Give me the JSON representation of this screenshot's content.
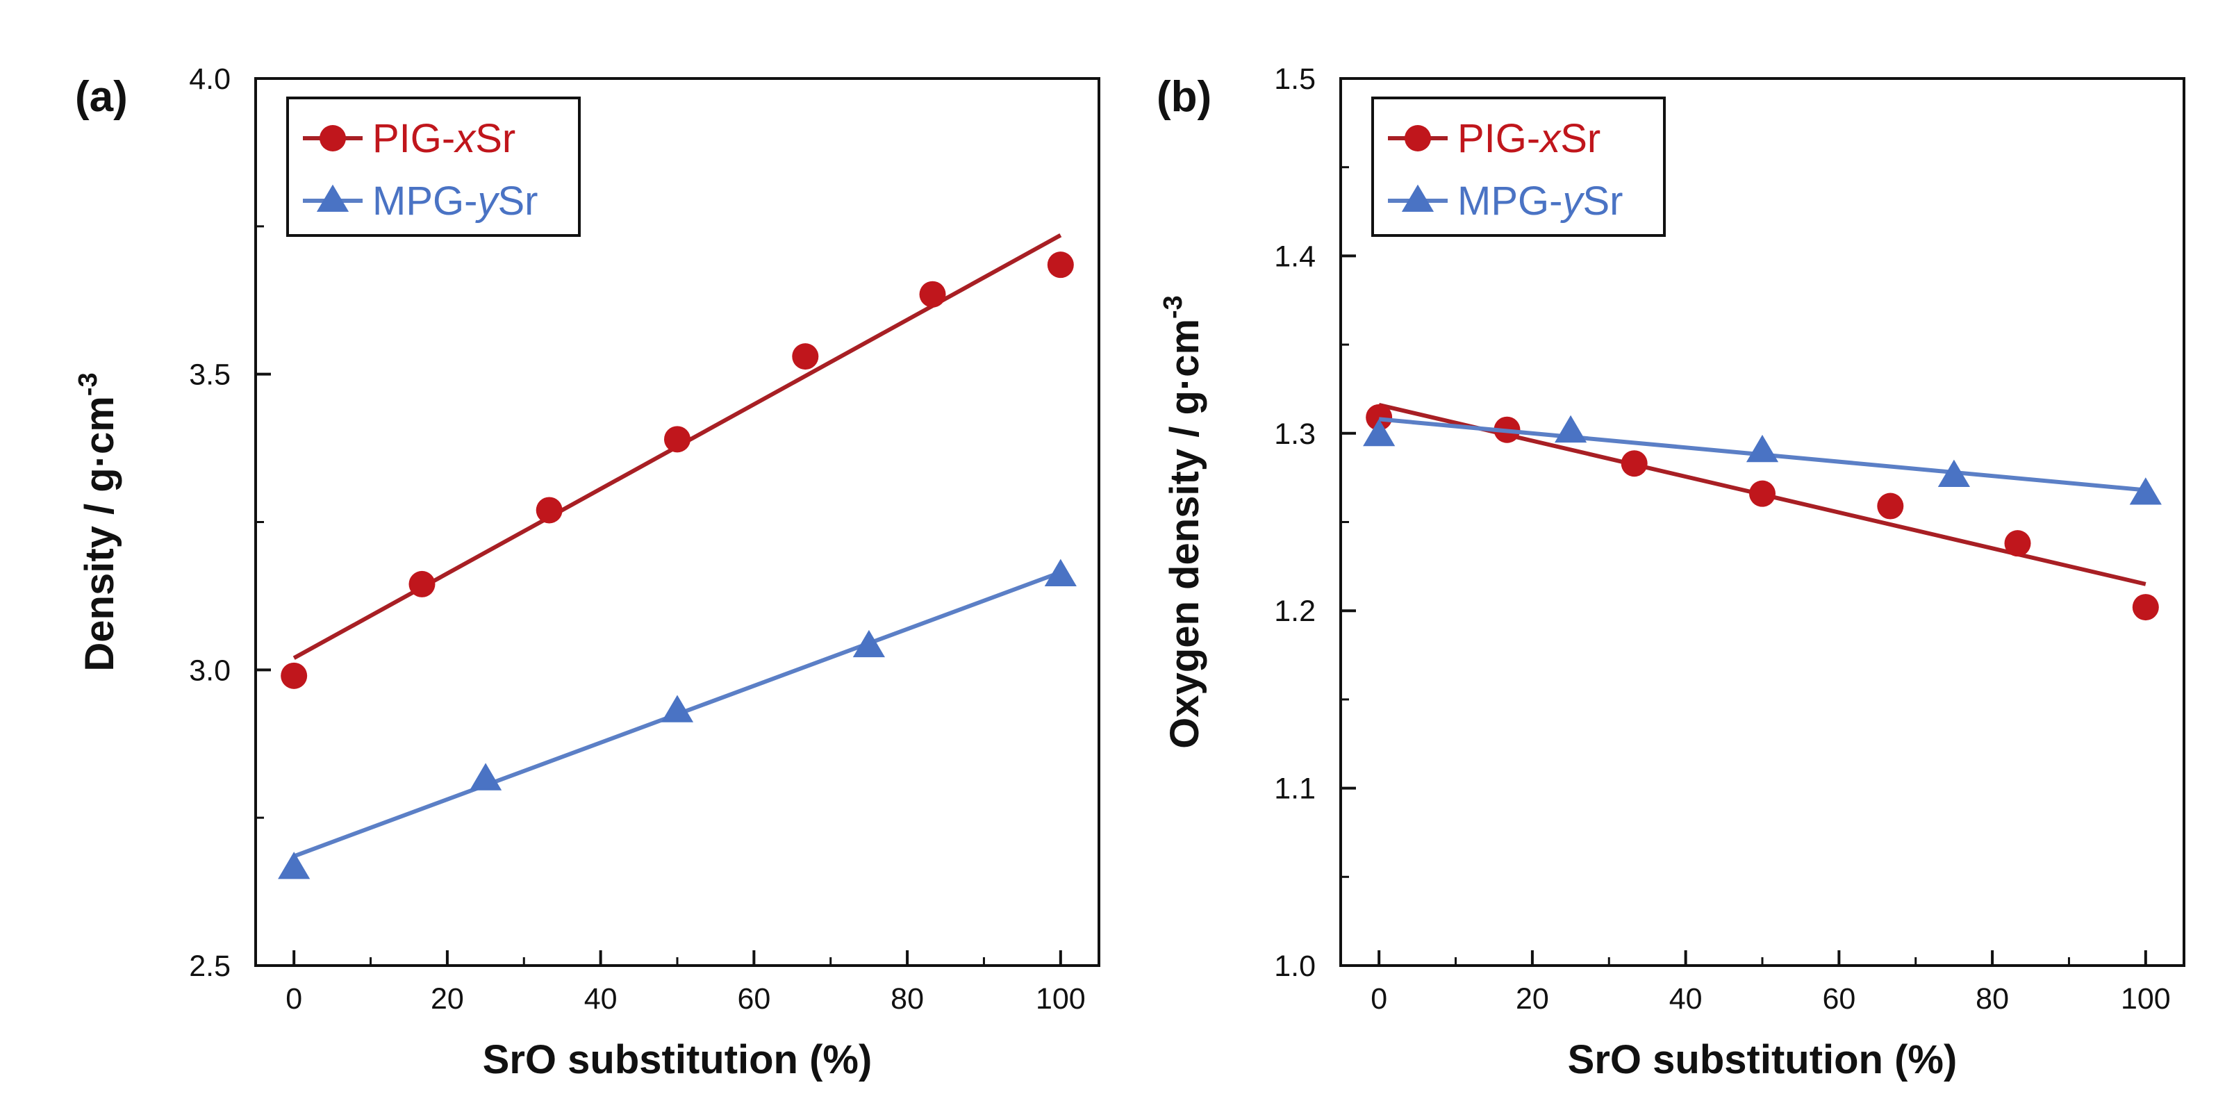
{
  "colors": {
    "pig": "#c0161c",
    "pig_line": "#a81f24",
    "mpg": "#4a73c4",
    "mpg_line": "#5b7fc6",
    "axis": "#111111"
  },
  "chart_data": [
    {
      "type": "scatter",
      "panel_label": "(a)",
      "xlabel": "SrO substitution (%)",
      "ylabel": "Density / g·cm",
      "ylabel_sup": "-3",
      "xlim": [
        -5,
        105
      ],
      "ylim": [
        2.5,
        4.0
      ],
      "x_ticks": [
        0,
        20,
        40,
        60,
        80,
        100
      ],
      "x_tick_labels": [
        "0",
        "20",
        "40",
        "60",
        "80",
        "100"
      ],
      "y_ticks": [
        2.5,
        3.0,
        3.5,
        4.0
      ],
      "y_tick_labels": [
        "2.5",
        "3.0",
        "3.5",
        "4.0"
      ],
      "legend_position": "top-left",
      "series": [
        {
          "name": "PIG-xSr",
          "legend_prefix": "PIG-",
          "legend_italic": "x",
          "legend_suffix": "Sr",
          "marker": "circle",
          "color_key": "pig",
          "x": [
            0,
            16.7,
            33.3,
            50,
            66.7,
            83.3,
            100
          ],
          "y": [
            2.99,
            3.145,
            3.27,
            3.39,
            3.53,
            3.635,
            3.685
          ],
          "fit": [
            [
              0,
              3.02
            ],
            [
              100,
              3.735
            ]
          ]
        },
        {
          "name": "MPG-ySr",
          "legend_prefix": "MPG-",
          "legend_italic": "y",
          "legend_suffix": "Sr",
          "marker": "triangle",
          "color_key": "mpg",
          "x": [
            0,
            25,
            50,
            75,
            100
          ],
          "y": [
            2.665,
            2.815,
            2.93,
            3.04,
            3.16
          ],
          "fit": [
            [
              0,
              2.685
            ],
            [
              100,
              3.165
            ]
          ]
        }
      ]
    },
    {
      "type": "scatter",
      "panel_label": "(b)",
      "xlabel": "SrO substitution (%)",
      "ylabel": "Oxygen density / g·cm",
      "ylabel_sup": "-3",
      "xlim": [
        -5,
        105
      ],
      "ylim": [
        1.0,
        1.5
      ],
      "x_ticks": [
        0,
        20,
        40,
        60,
        80,
        100
      ],
      "x_tick_labels": [
        "0",
        "20",
        "40",
        "60",
        "80",
        "100"
      ],
      "y_ticks": [
        1.0,
        1.1,
        1.2,
        1.3,
        1.4,
        1.5
      ],
      "y_tick_labels": [
        "1.0",
        "1.1",
        "1.2",
        "1.3",
        "1.4",
        "1.5"
      ],
      "legend_position": "top-left",
      "series": [
        {
          "name": "PIG-xSr",
          "legend_prefix": "PIG-",
          "legend_italic": "x",
          "legend_suffix": "Sr",
          "marker": "circle",
          "color_key": "pig",
          "x": [
            0,
            16.7,
            33.3,
            50,
            66.7,
            83.3,
            100
          ],
          "y": [
            1.309,
            1.302,
            1.283,
            1.266,
            1.259,
            1.238,
            1.202
          ],
          "fit": [
            [
              0,
              1.316
            ],
            [
              100,
              1.215
            ]
          ]
        },
        {
          "name": "MPG-ySr",
          "legend_prefix": "MPG-",
          "legend_italic": "y",
          "legend_suffix": "Sr",
          "marker": "triangle",
          "color_key": "mpg",
          "x": [
            0,
            25,
            50,
            75,
            100
          ],
          "y": [
            1.299,
            1.301,
            1.29,
            1.276,
            1.266
          ],
          "fit": [
            [
              0,
              1.308
            ],
            [
              100,
              1.268
            ]
          ]
        }
      ]
    }
  ]
}
